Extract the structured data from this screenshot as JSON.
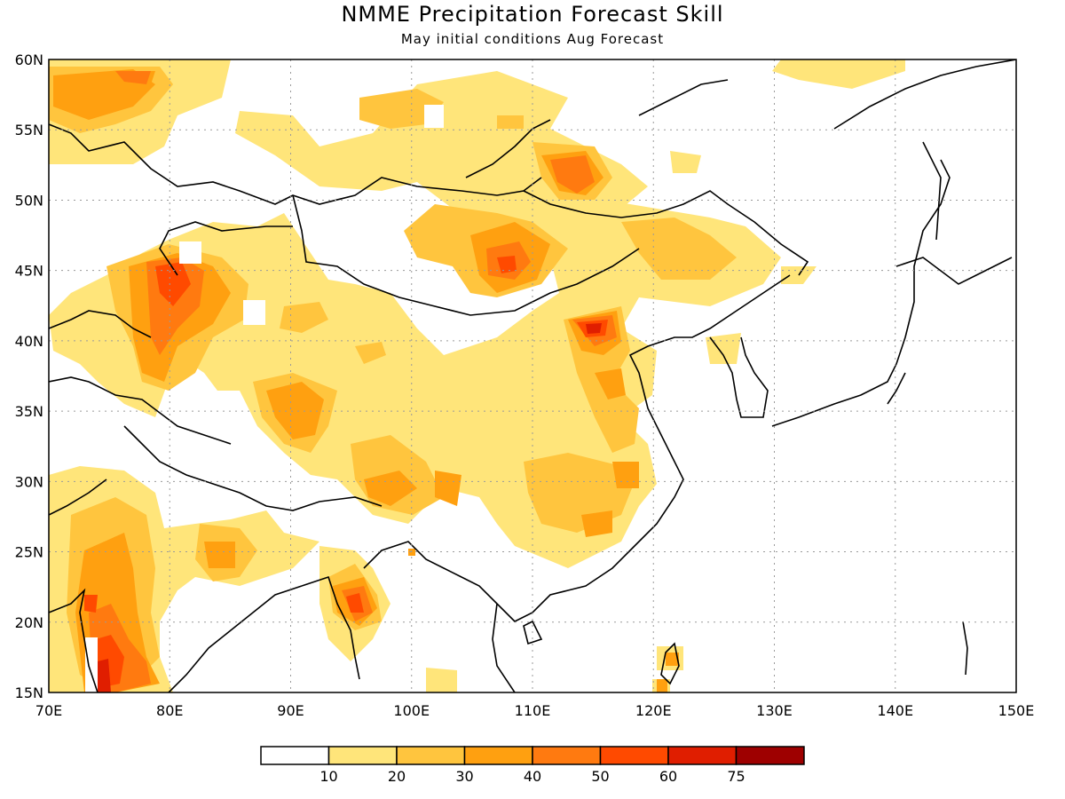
{
  "title": "NMME Precipitation Forecast Skill",
  "subtitle": "May initial conditions  Aug Forecast",
  "axes": {
    "x_ticks": [
      "70E",
      "80E",
      "90E",
      "100E",
      "110E",
      "120E",
      "130E",
      "140E",
      "150E"
    ],
    "y_ticks": [
      "60N",
      "55N",
      "50N",
      "45N",
      "40N",
      "35N",
      "30N",
      "25N",
      "20N",
      "15N"
    ]
  },
  "colorbar": {
    "colors": [
      "#ffffff",
      "#ffe57a",
      "#ffc53e",
      "#ffa010",
      "#ff7a10",
      "#ff4a00",
      "#e01e00",
      "#9e0000"
    ],
    "labels": [
      "10",
      "20",
      "30",
      "40",
      "50",
      "60",
      "75"
    ]
  },
  "palette": {
    "frame": "#000000",
    "grid": "#9a9a9a"
  }
}
